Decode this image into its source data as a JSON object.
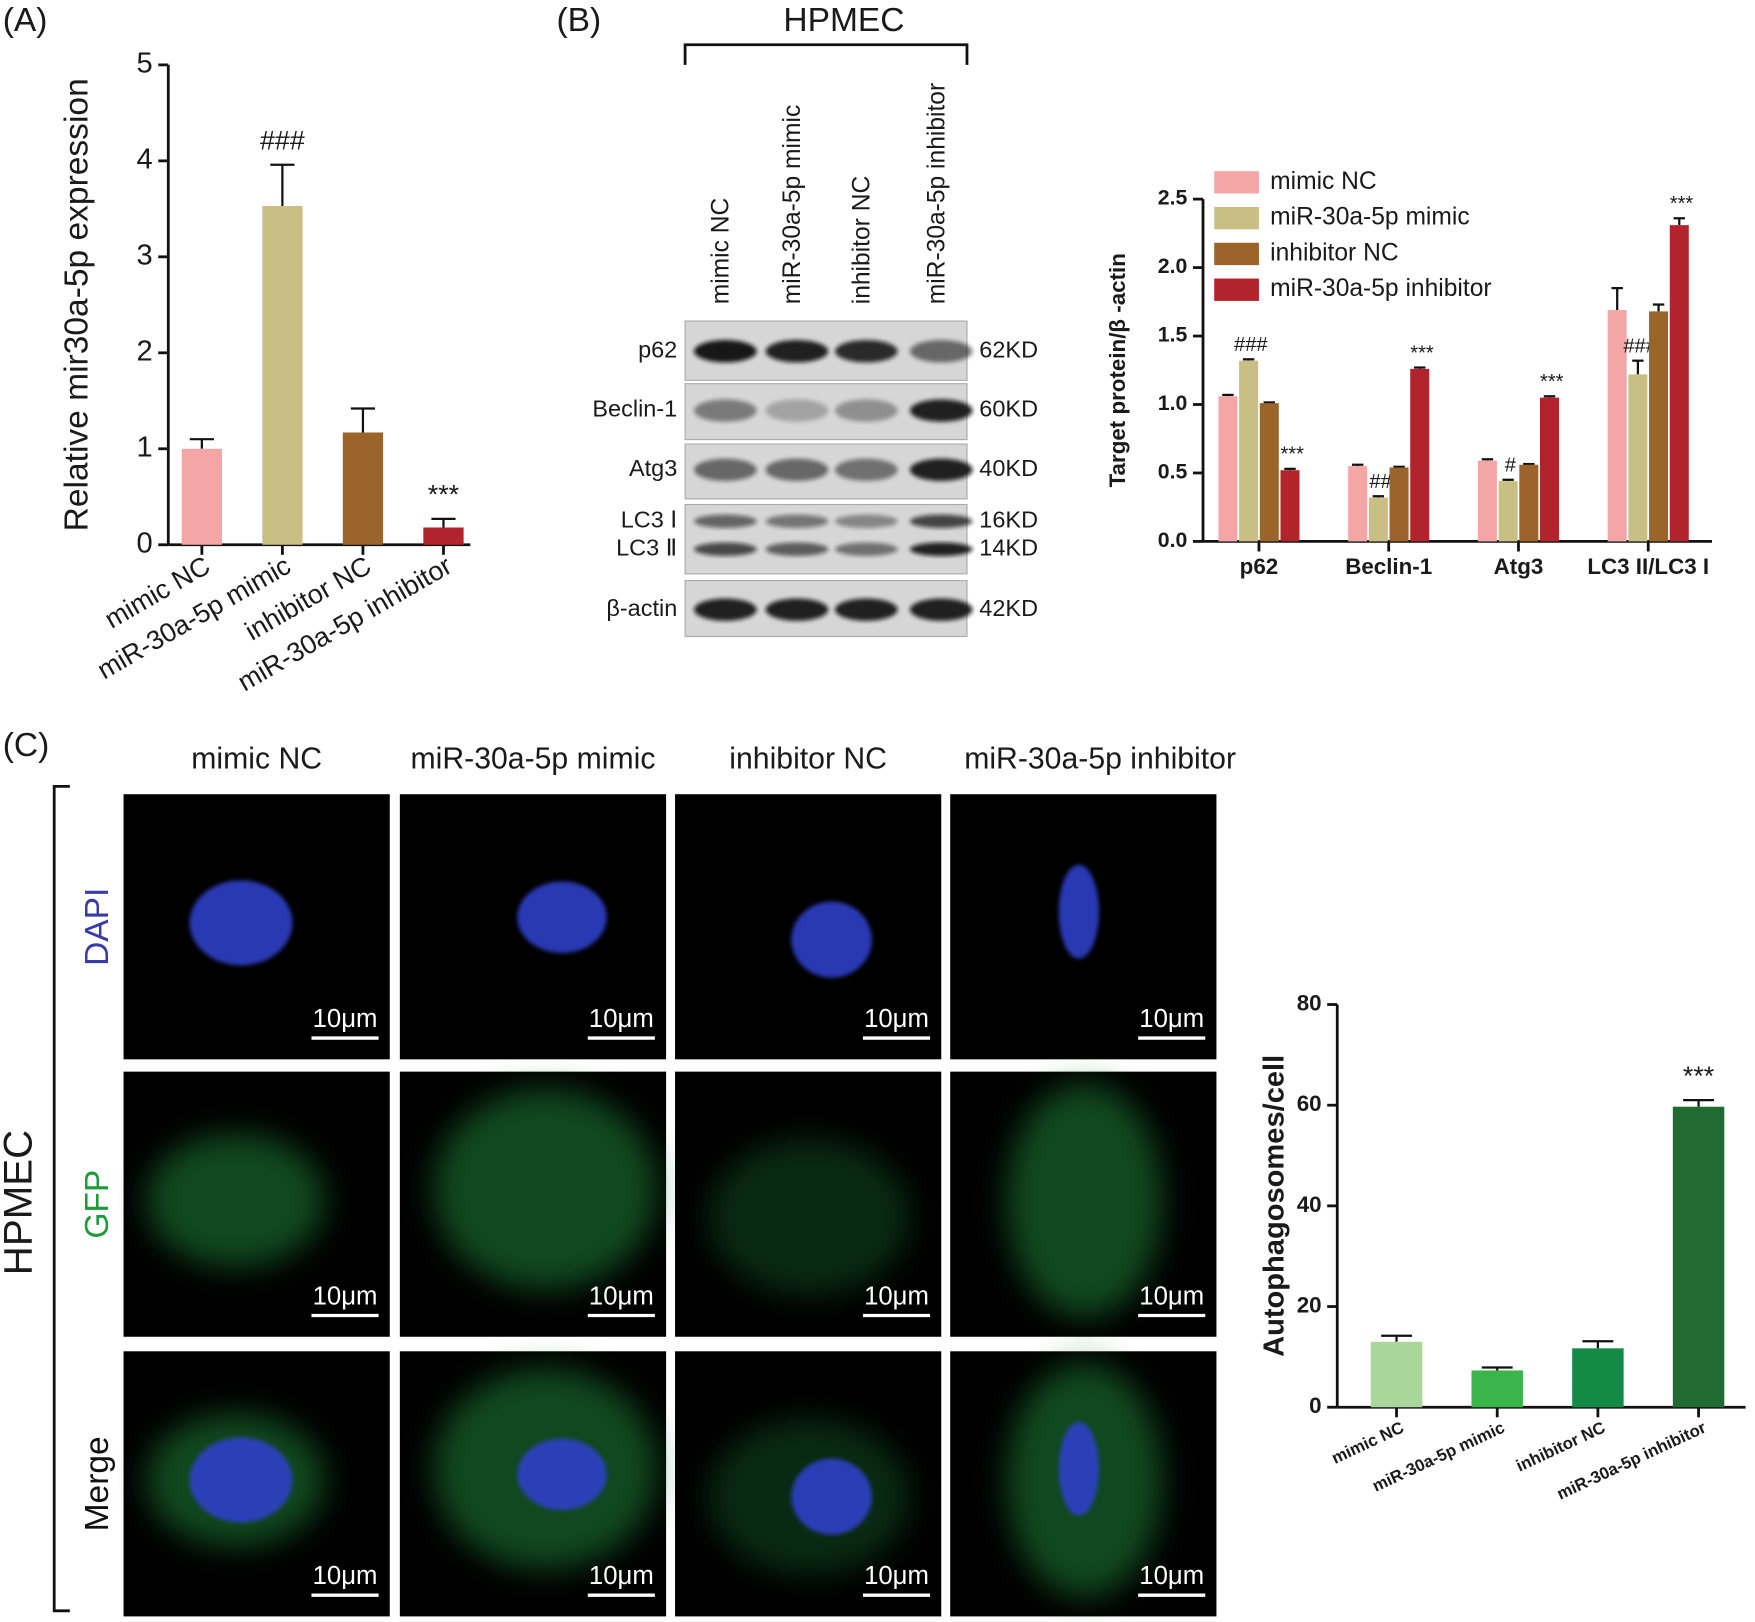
{
  "panel_labels": [
    "(A)",
    "(B)",
    "(C)"
  ],
  "chart_data": [
    {
      "type": "bar",
      "ylabel": "Relative mir30a-5p expression",
      "categories": [
        "mimic NC",
        "miR-30a-5p mimic",
        "inhibitor NC",
        "miR-30a-5p inhibitor"
      ],
      "values": [
        1.0,
        3.53,
        1.17,
        0.18
      ],
      "errors": [
        0.1,
        0.43,
        0.25,
        0.09
      ],
      "colors": [
        "#f4a6a6",
        "#c9bf85",
        "#9a642b",
        "#b1242c"
      ],
      "sig_labels": [
        null,
        "###",
        null,
        "***"
      ],
      "ylim": [
        0,
        5
      ],
      "yticks": [
        0,
        1,
        2,
        3,
        4,
        5
      ]
    },
    {
      "type": "grouped_bar",
      "ylabel": "Target protein/β -actin",
      "categories": [
        "p62",
        "Beclin-1",
        "Atg3",
        "LC3 II/LC3 I"
      ],
      "series": [
        {
          "name": "mimic NC",
          "color": "#f4a6a6",
          "values": [
            1.06,
            0.55,
            0.59,
            1.69
          ],
          "errors": [
            0.01,
            0.01,
            0.01,
            0.16
          ]
        },
        {
          "name": "miR-30a-5p mimic",
          "color": "#c9bf85",
          "values": [
            1.32,
            0.32,
            0.44,
            1.22
          ],
          "errors": [
            0.01,
            0.01,
            0.01,
            0.1
          ],
          "sig_labels": [
            "###",
            "##",
            "#",
            "###"
          ]
        },
        {
          "name": "inhibitor NC",
          "color": "#9a642b",
          "values": [
            1.01,
            0.54,
            0.56,
            1.68
          ],
          "errors": [
            0.005,
            0.005,
            0.005,
            0.05
          ]
        },
        {
          "name": "miR-30a-5p inhibitor",
          "color": "#b1242c",
          "values": [
            0.52,
            1.26,
            1.05,
            2.31
          ],
          "errors": [
            0.01,
            0.01,
            0.01,
            0.05
          ],
          "sig_labels": [
            "***",
            "***",
            "***",
            "***"
          ]
        }
      ],
      "ylim": [
        0,
        2.5
      ],
      "yticks": [
        {
          "value": 0,
          "label": "0.0"
        },
        0.5,
        {
          "value": 1,
          "label": "1.0"
        },
        1.5,
        {
          "value": 2,
          "label": "2.0"
        },
        2.5
      ]
    },
    {
      "type": "bar",
      "ylabel": "Autophagosomes/cell",
      "categories": [
        "mimic NC",
        "miR-30a-5p mimic",
        "inhibitor NC",
        "miR-30a-5p inhibitor"
      ],
      "values": [
        13,
        7.3,
        11.7,
        59.7
      ],
      "errors": [
        1.2,
        0.6,
        1.4,
        1.3
      ],
      "colors": [
        "#a9d69a",
        "#3bb54a",
        "#138a45",
        "#1f6b31"
      ],
      "sig_labels": [
        null,
        null,
        null,
        "***"
      ],
      "ylim": [
        0,
        80
      ],
      "yticks": [
        0,
        20,
        40,
        60,
        80
      ]
    }
  ],
  "blot": {
    "title": "HPMEC",
    "lanes": [
      "mimic NC",
      "miR-30a-5p mimic",
      "inhibitor NC",
      "miR-30a-5p inhibitor"
    ],
    "rows": [
      {
        "labels": [
          "p62"
        ],
        "sizes": [
          "62KD"
        ]
      },
      {
        "labels": [
          "Beclin-1"
        ],
        "sizes": [
          "60KD"
        ]
      },
      {
        "labels": [
          "Atg3"
        ],
        "sizes": [
          "40KD"
        ]
      },
      {
        "labels": [
          "LC3 Ⅰ",
          "LC3 Ⅱ"
        ],
        "sizes": [
          "16KD",
          "14KD"
        ]
      },
      {
        "labels": [
          "β-actin"
        ],
        "sizes": [
          "42KD"
        ]
      }
    ]
  },
  "microscopy": {
    "cell_line": "HPMEC",
    "columns": [
      "mimic NC",
      "miR-30a-5p mimic",
      "inhibitor NC",
      "miR-30a-5p inhibitor"
    ],
    "rows": [
      "DAPI",
      "GFP",
      "Merge"
    ],
    "scale_bar": "10μm"
  }
}
